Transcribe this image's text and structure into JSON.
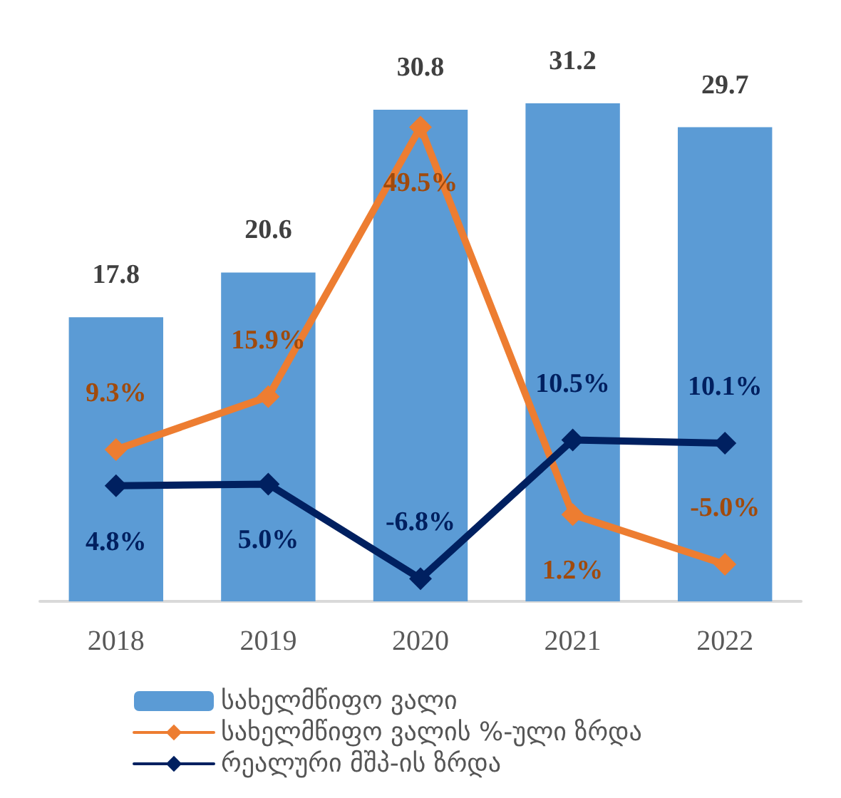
{
  "chart_data": {
    "type": "bar",
    "categories": [
      "2018",
      "2019",
      "2020",
      "2021",
      "2022"
    ],
    "series": [
      {
        "name": "სახელმწიფო ვალი",
        "color": "#5b9bd5",
        "values": [
          17.8,
          20.6,
          30.8,
          31.2,
          29.7
        ],
        "value_labels": [
          "17.8",
          "20.6",
          "30.8",
          "31.2",
          "29.7"
        ]
      },
      {
        "name": "სახელმწიფო ვალის %-ული ზრდა",
        "type": "line",
        "axis": "y2",
        "color": "#ed7d31",
        "values": [
          9.3,
          15.9,
          49.5,
          1.2,
          -5.0
        ],
        "value_labels": [
          "9.3%",
          "15.9%",
          "49.5%",
          "1.2%",
          "-5.0%"
        ]
      },
      {
        "name": "რეალური მშპ-ის ზრდა",
        "type": "line",
        "axis": "y2",
        "color": "#002060",
        "values": [
          4.8,
          5.0,
          -6.8,
          10.5,
          10.1
        ],
        "value_labels": [
          "4.8%",
          "5.0%",
          "-6.8%",
          "10.5%",
          "10.1%"
        ]
      }
    ],
    "legend": "bottom",
    "marker": "diamond",
    "tick_labels": "x"
  }
}
